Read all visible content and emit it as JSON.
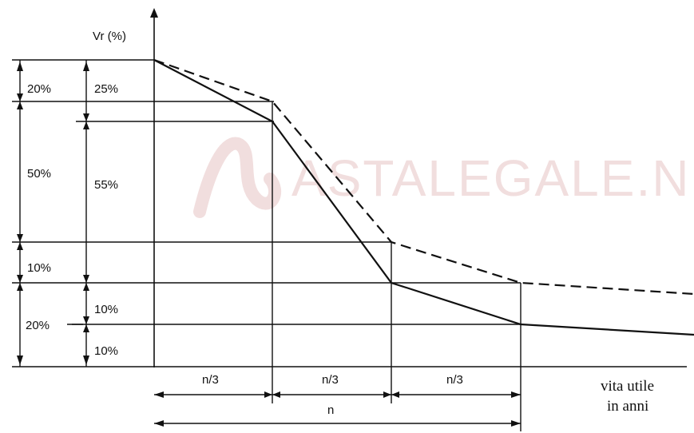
{
  "diagram": {
    "y_axis_label": "Vr (%)",
    "x_axis_label_line1": "vita utile",
    "x_axis_label_line2": "in anni",
    "watermark": "ASTALEGALE.NE",
    "outer_dimensions": [
      "20%",
      "50%",
      "10%",
      "20%"
    ],
    "inner_dimensions": [
      "25%",
      "55%",
      "10%",
      "10%"
    ],
    "bottom_segments": [
      "n/3",
      "n/3",
      "n/3"
    ],
    "bottom_total": "n",
    "colors": {
      "line": "#111111",
      "watermark": "#f1dede"
    }
  }
}
